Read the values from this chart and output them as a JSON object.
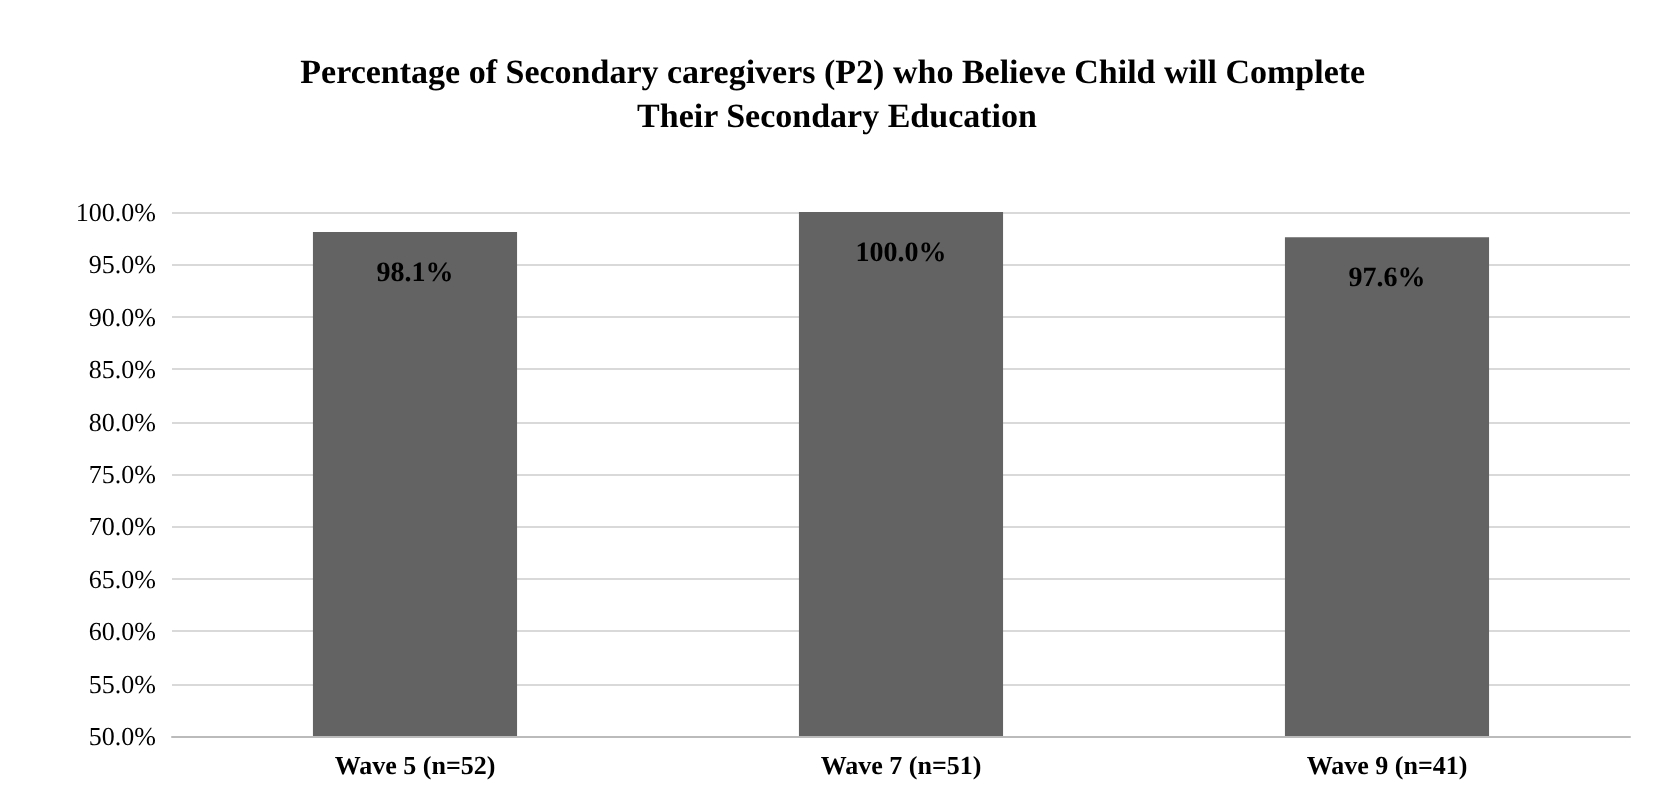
{
  "chart_data": {
    "type": "bar",
    "title": "Percentage of Secondary caregivers (P2) who Believe Child will Complete Their Secondary Education",
    "categories": [
      "Wave 5 (n=52)",
      "Wave 7 (n=51)",
      "Wave 9 (n=41)"
    ],
    "values": [
      98.1,
      100.0,
      97.6
    ],
    "value_labels": [
      "98.1%",
      "100.0%",
      "97.6%"
    ],
    "color": "#636363",
    "ylim": [
      50,
      100
    ],
    "yticks": [
      {
        "value": 50,
        "label": "50.0%"
      },
      {
        "value": 55,
        "label": "55.0%"
      },
      {
        "value": 60,
        "label": "60.0%"
      },
      {
        "value": 65,
        "label": "65.0%"
      },
      {
        "value": 70,
        "label": "70.0%"
      },
      {
        "value": 75,
        "label": "75.0%"
      },
      {
        "value": 80,
        "label": "80.0%"
      },
      {
        "value": 85,
        "label": "85.0%"
      },
      {
        "value": 90,
        "label": "90.0%"
      },
      {
        "value": 95,
        "label": "95.0%"
      },
      {
        "value": 100,
        "label": "100.0%"
      }
    ],
    "grid": "y"
  }
}
